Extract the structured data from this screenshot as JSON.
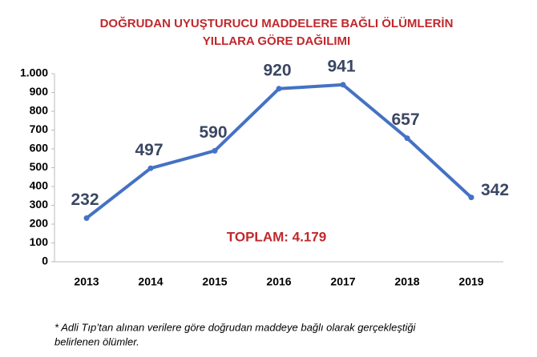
{
  "chart_data": {
    "type": "line",
    "title": [
      "DOĞRUDAN UYUŞTURUCU MADDELERE BAĞLI ÖLÜMLERİN",
      "YILLARA GÖRE DAĞILIMI"
    ],
    "categories": [
      "2013",
      "2014",
      "2015",
      "2016",
      "2017",
      "2018",
      "2019"
    ],
    "values": [
      232,
      497,
      590,
      920,
      941,
      657,
      342
    ],
    "color": "#4472c4",
    "ylim": [
      0,
      1000
    ],
    "yticks": [
      0,
      100,
      200,
      300,
      400,
      500,
      600,
      700,
      800,
      900,
      {
        "value": 1000,
        "label": "1.000"
      }
    ],
    "annotation": "TOPLAM: 4.179",
    "footnote": [
      "* Adli Tıp’tan alınan verilere göre doğrudan maddeye bağlı olarak gerçekleştiği",
      "belirlenen ölümler."
    ]
  }
}
